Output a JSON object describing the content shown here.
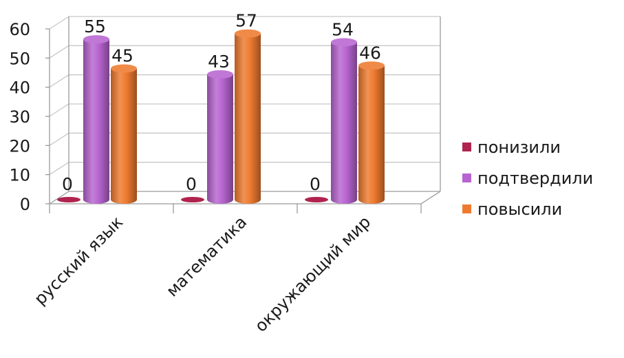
{
  "chart_data": {
    "type": "bar",
    "title": "",
    "xlabel": "",
    "ylabel": "",
    "ylim": [
      0,
      60
    ],
    "yticks": [
      0,
      10,
      20,
      30,
      40,
      50,
      60
    ],
    "ytick_labels": [
      "0",
      "10",
      "20",
      "30",
      "40",
      "50",
      "60"
    ],
    "categories": [
      "русский язык",
      "математика",
      "окружающий мир"
    ],
    "series": [
      {
        "name": "понизили",
        "color": "#b0234e",
        "values": [
          0,
          0,
          0
        ],
        "labels": [
          "0",
          "0",
          "0"
        ]
      },
      {
        "name": "подтвердили",
        "color": "#b764d0",
        "values": [
          55,
          43,
          54
        ],
        "labels": [
          "55",
          "43",
          "54"
        ]
      },
      {
        "name": "повысили",
        "color": "#ee7a2f",
        "values": [
          45,
          57,
          46
        ],
        "labels": [
          "45",
          "57",
          "46"
        ]
      }
    ],
    "grid": true,
    "legend_position": "right",
    "style": "3d-cylinder"
  }
}
